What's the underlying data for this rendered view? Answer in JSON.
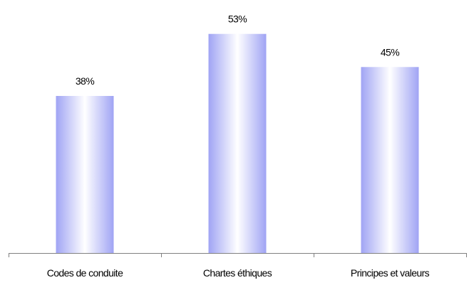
{
  "chart_data": {
    "type": "bar",
    "title": "",
    "xlabel": "",
    "ylabel": "",
    "categories": [
      "Codes de conduite",
      "Chartes éthiques",
      "Principes et valeurs"
    ],
    "values": [
      38,
      53,
      45
    ],
    "value_labels": [
      "38%",
      "53%",
      "45%"
    ],
    "unit": "%",
    "ylim": [
      0,
      60
    ],
    "grid": false,
    "legend": "none",
    "bar_color_edge": "#a0a4f4",
    "bar_color_center": "#ffffff"
  }
}
